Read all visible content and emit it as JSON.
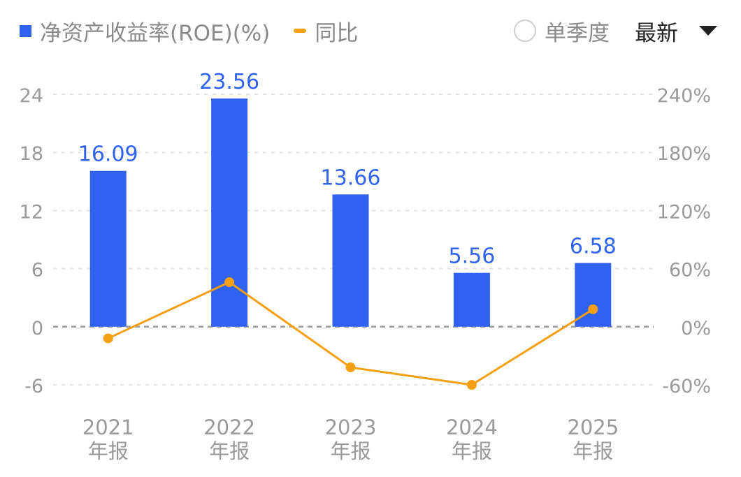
{
  "legend": {
    "roe_label": "净资产收益率(ROE)(%)",
    "yoy_label": "同比"
  },
  "controls": {
    "single_quarter_label": "单季度",
    "latest_label": "最新"
  },
  "colors": {
    "bar": "#2f62ee",
    "line": "#f5a014",
    "bar_label": "#2f62ee",
    "axis_text": "#9a9a9a",
    "grid": "#e4e4e4",
    "zero_line": "#9a9a9a"
  },
  "chart_data": {
    "type": "bar",
    "categories": [
      "2021\n年报",
      "2022\n年报",
      "2023\n年报",
      "2024\n年报",
      "2025\n年报"
    ],
    "series": [
      {
        "name": "净资产收益率(ROE)(%)",
        "type": "bar",
        "axis": "left",
        "values": [
          16.09,
          23.56,
          13.66,
          5.56,
          6.58
        ]
      },
      {
        "name": "同比",
        "type": "line",
        "axis": "right",
        "values": [
          -12,
          46,
          -42,
          -60,
          18
        ]
      }
    ],
    "y_left": {
      "ticks": [
        "24",
        "18",
        "12",
        "6",
        "0",
        "-6"
      ],
      "range": [
        -6,
        24
      ]
    },
    "y_right": {
      "ticks": [
        "240%",
        "180%",
        "120%",
        "60%",
        "0%",
        "-60%"
      ],
      "range": [
        -60,
        240
      ]
    },
    "data_labels": [
      "16.09",
      "23.56",
      "13.66",
      "5.56",
      "6.58"
    ],
    "grid": true,
    "legend_position": "top-left"
  }
}
